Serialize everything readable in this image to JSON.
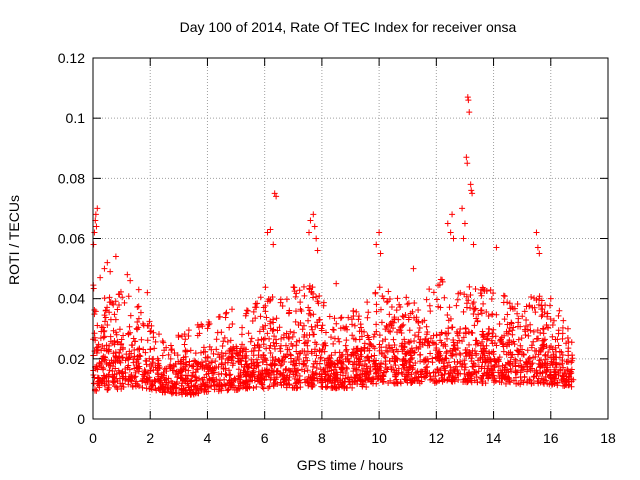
{
  "chart_data": {
    "type": "scatter",
    "title": "Day 100 of 2014, Rate Of TEC Index for receiver onsa",
    "xlabel": "GPS time / hours",
    "ylabel": "ROTI / TECUs",
    "xlim": [
      0,
      18
    ],
    "ylim": [
      0,
      0.12
    ],
    "x_ticks": [
      0,
      2,
      4,
      6,
      8,
      10,
      12,
      14,
      16,
      18
    ],
    "y_ticks": [
      0,
      0.02,
      0.04,
      0.06,
      0.08,
      0.1,
      0.12
    ],
    "x_tick_labels": [
      "0",
      "2",
      "4",
      "6",
      "8",
      "10",
      "12",
      "14",
      "16",
      "18"
    ],
    "y_tick_labels": [
      "0",
      "0.02",
      "0.04",
      "0.06",
      "0.08",
      "0.1",
      "0.12"
    ],
    "grid": true,
    "marker": "+",
    "marker_color": "#ff0000",
    "series": [
      {
        "name": "ROTI",
        "points": [
          [
            0.02,
            0.058
          ],
          [
            0.05,
            0.062
          ],
          [
            0.08,
            0.066
          ],
          [
            0.1,
            0.068
          ],
          [
            0.12,
            0.064
          ],
          [
            0.15,
            0.07
          ],
          [
            0.25,
            0.047
          ],
          [
            0.4,
            0.05
          ],
          [
            0.5,
            0.052
          ],
          [
            0.6,
            0.049
          ],
          [
            0.8,
            0.054
          ],
          [
            1.2,
            0.048
          ],
          [
            1.3,
            0.046
          ],
          [
            1.6,
            0.043
          ],
          [
            1.9,
            0.042
          ],
          [
            6.1,
            0.062
          ],
          [
            6.2,
            0.063
          ],
          [
            6.3,
            0.058
          ],
          [
            6.35,
            0.075
          ],
          [
            6.4,
            0.074
          ],
          [
            7.55,
            0.062
          ],
          [
            7.6,
            0.066
          ],
          [
            7.7,
            0.068
          ],
          [
            7.75,
            0.064
          ],
          [
            7.8,
            0.06
          ],
          [
            7.85,
            0.056
          ],
          [
            8.5,
            0.045
          ],
          [
            9.9,
            0.058
          ],
          [
            10.0,
            0.062
          ],
          [
            10.05,
            0.055
          ],
          [
            11.2,
            0.05
          ],
          [
            12.4,
            0.065
          ],
          [
            12.5,
            0.062
          ],
          [
            12.55,
            0.068
          ],
          [
            12.6,
            0.06
          ],
          [
            12.9,
            0.07
          ],
          [
            13.05,
            0.087
          ],
          [
            13.08,
            0.085
          ],
          [
            13.1,
            0.107
          ],
          [
            13.12,
            0.106
          ],
          [
            13.15,
            0.102
          ],
          [
            13.2,
            0.078
          ],
          [
            13.22,
            0.076
          ],
          [
            13.25,
            0.075
          ],
          [
            13.0,
            0.065
          ],
          [
            12.95,
            0.06
          ],
          [
            13.3,
            0.058
          ],
          [
            14.1,
            0.057
          ],
          [
            15.5,
            0.062
          ],
          [
            15.55,
            0.057
          ],
          [
            15.6,
            0.055
          ],
          [
            16.0,
            0.04
          ],
          [
            16.3,
            0.036
          ],
          [
            16.6,
            0.03
          ]
        ],
        "envelope": {
          "x": [
            0,
            0.5,
            1,
            1.5,
            2,
            2.5,
            3,
            3.5,
            4,
            4.5,
            5,
            5.5,
            6,
            6.5,
            7,
            7.5,
            8,
            8.5,
            9,
            9.5,
            10,
            10.5,
            11,
            11.5,
            12,
            12.5,
            13,
            13.5,
            14,
            14.5,
            15,
            15.5,
            16,
            16.5,
            16.8
          ],
          "low": [
            0.006,
            0.007,
            0.007,
            0.008,
            0.008,
            0.007,
            0.006,
            0.006,
            0.007,
            0.007,
            0.007,
            0.008,
            0.007,
            0.008,
            0.007,
            0.007,
            0.008,
            0.008,
            0.008,
            0.008,
            0.009,
            0.009,
            0.009,
            0.009,
            0.009,
            0.009,
            0.009,
            0.009,
            0.009,
            0.009,
            0.009,
            0.009,
            0.009,
            0.009,
            0.009
          ],
          "high": [
            0.045,
            0.04,
            0.043,
            0.041,
            0.032,
            0.026,
            0.03,
            0.031,
            0.033,
            0.035,
            0.038,
            0.036,
            0.045,
            0.042,
            0.045,
            0.048,
            0.04,
            0.034,
            0.036,
            0.038,
            0.044,
            0.042,
            0.044,
            0.042,
            0.045,
            0.05,
            0.048,
            0.044,
            0.045,
            0.04,
            0.04,
            0.042,
            0.038,
            0.032,
            0.028
          ]
        }
      }
    ]
  }
}
